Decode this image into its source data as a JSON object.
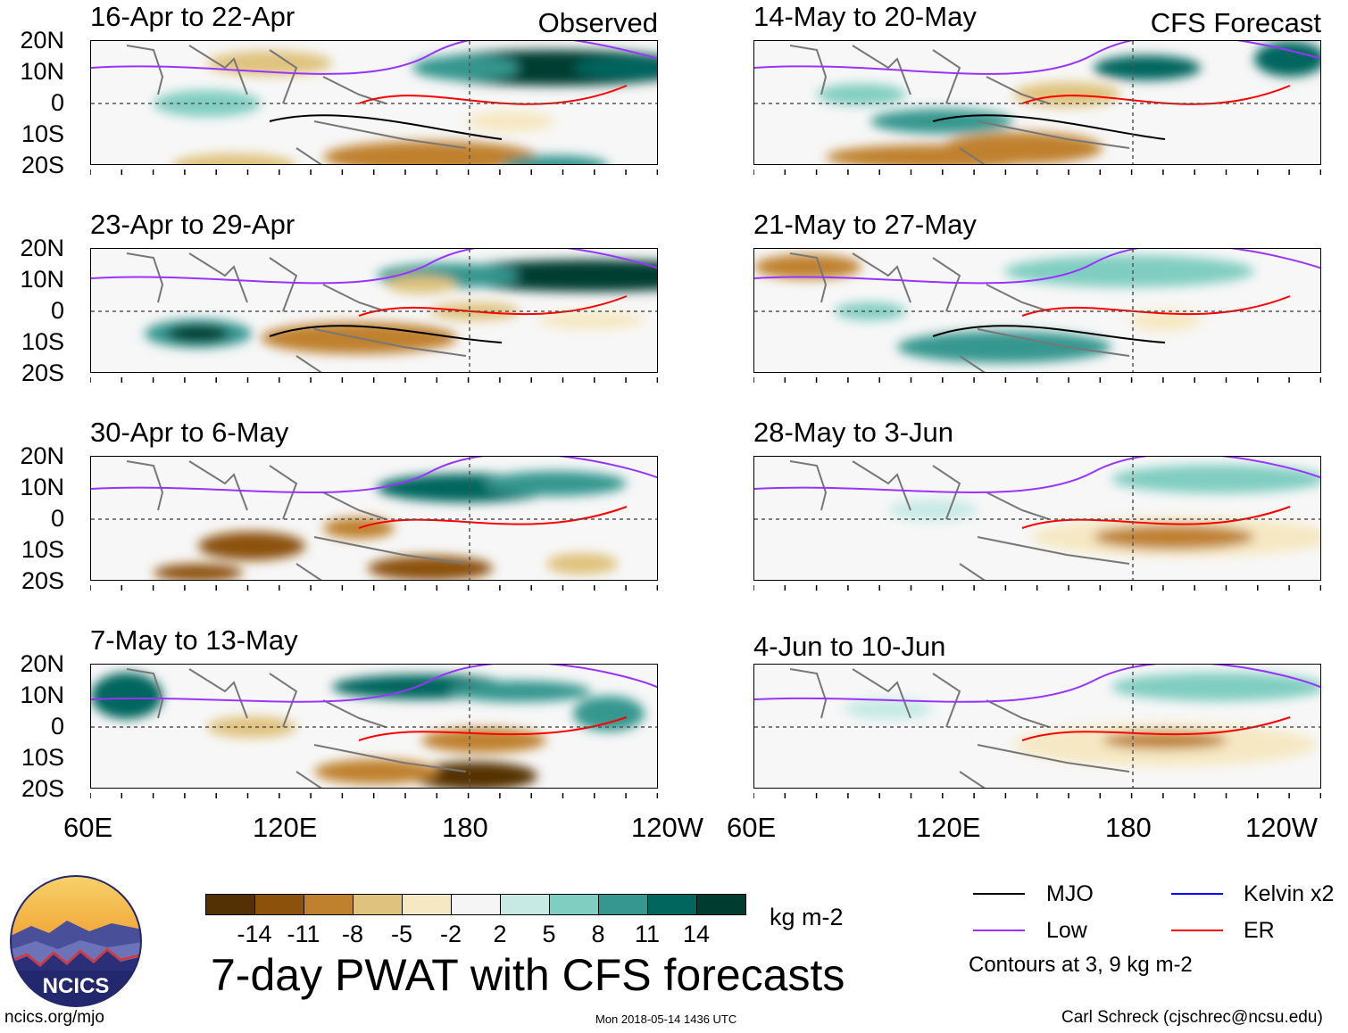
{
  "panels": [
    {
      "title": "16-Apr to 22-Apr",
      "corner": "Observed"
    },
    {
      "title": "23-Apr to 29-Apr",
      "corner": ""
    },
    {
      "title": "30-Apr to 6-May",
      "corner": ""
    },
    {
      "title": "7-May to 13-May",
      "corner": ""
    },
    {
      "title": "14-May to 20-May",
      "corner": "CFS Forecast"
    },
    {
      "title": "21-May to 27-May",
      "corner": ""
    },
    {
      "title": "28-May to 3-Jun",
      "corner": ""
    },
    {
      "title": "4-Jun to 10-Jun",
      "corner": ""
    }
  ],
  "lat_labels": [
    "20N",
    "10N",
    "0",
    "10S",
    "20S"
  ],
  "lon_labels": [
    "60E",
    "120E",
    "180",
    "120W"
  ],
  "colorbar": {
    "unit": "kg m-2",
    "ticks": [
      "-14",
      "-11",
      "-8",
      "-5",
      "-2",
      "2",
      "5",
      "8",
      "11",
      "14"
    ],
    "colors": [
      "#543005",
      "#8c510a",
      "#bf812d",
      "#dfc27d",
      "#f6e8c3",
      "#f5f5f5",
      "#c7eae5",
      "#80cdc1",
      "#35978f",
      "#01665e",
      "#003c30"
    ]
  },
  "legend": {
    "items": [
      {
        "label": "MJO",
        "color": "#000000"
      },
      {
        "label": "Kelvin x2",
        "color": "#0000ff"
      },
      {
        "label": "Low",
        "color": "#9933ff"
      },
      {
        "label": "ER",
        "color": "#ff0000"
      }
    ],
    "contours_note": "Contours at 3, 9 kg m-2"
  },
  "logo_text": "NCICS",
  "main_title": "7-day PWAT with CFS forecasts",
  "footer": {
    "url": "ncics.org/mjo",
    "timestamp": "Mon 2018-05-14 1436 UTC",
    "author": "Carl Schreck (cjschrec@ncsu.edu)"
  }
}
